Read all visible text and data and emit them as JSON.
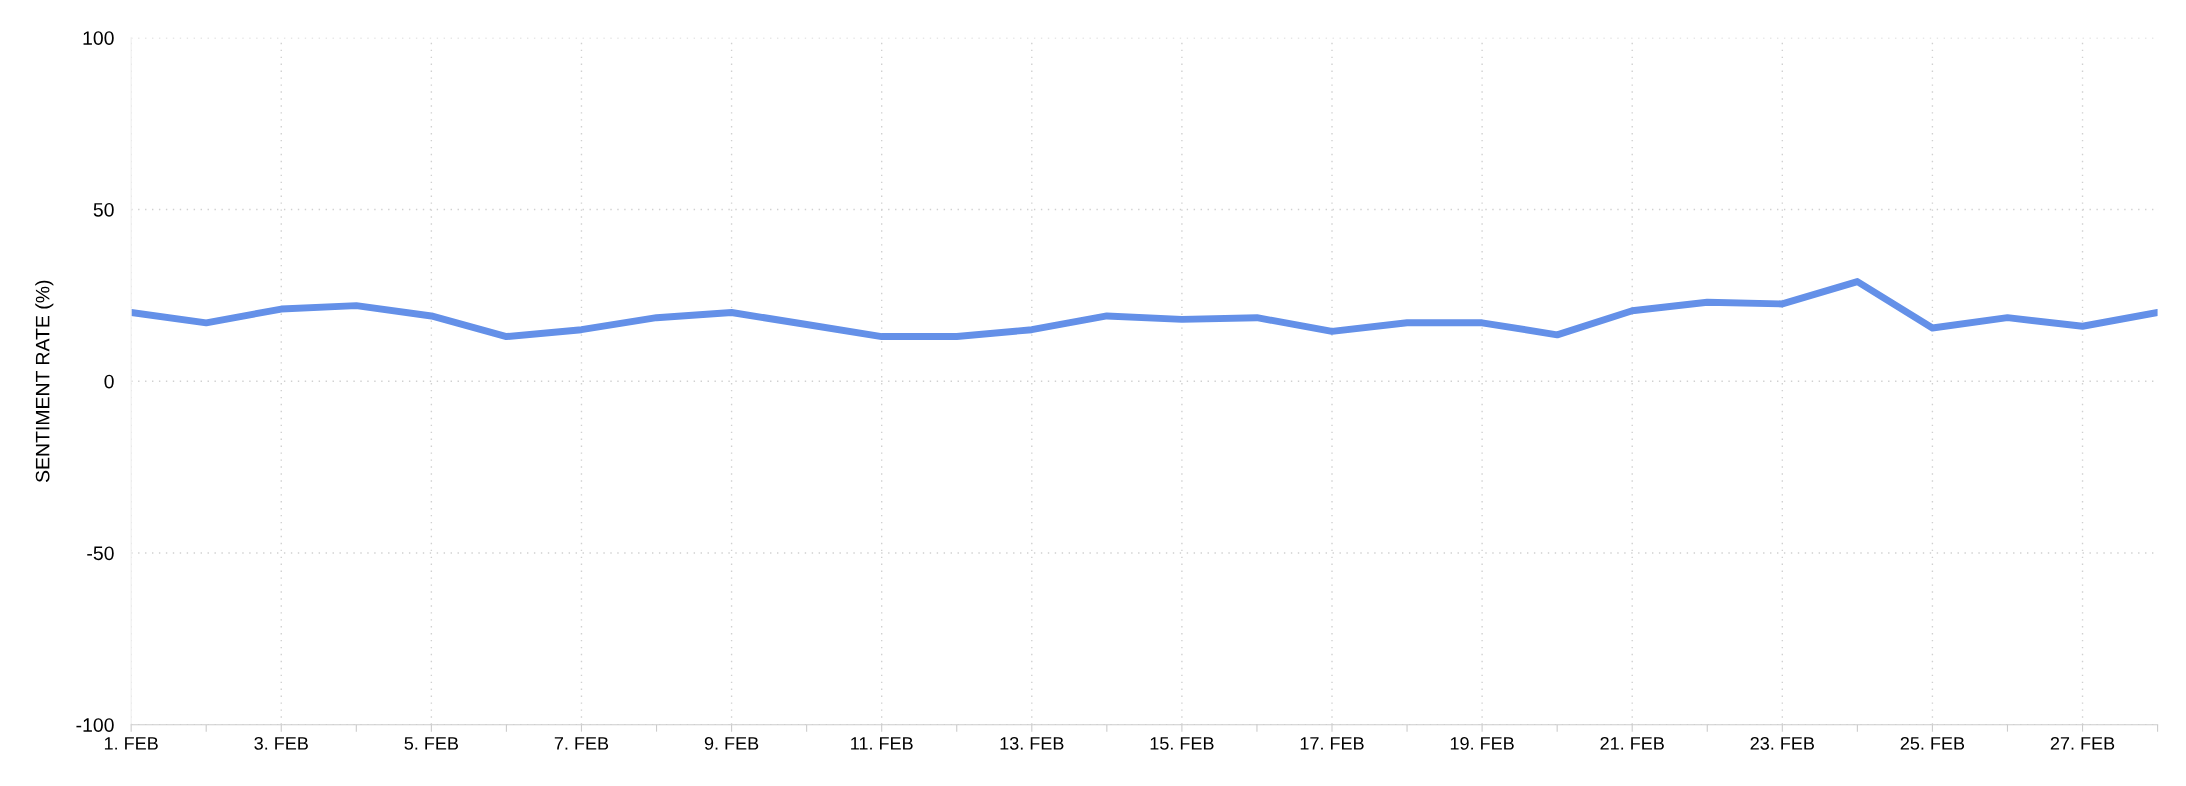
{
  "chart_data": {
    "type": "line",
    "ylabel": "SENTIMENT RATE (%)",
    "categories": [
      "1. FEB",
      null,
      "3. FEB",
      null,
      "5. FEB",
      null,
      "7. FEB",
      null,
      "9. FEB",
      null,
      "11. FEB",
      null,
      "13. FEB",
      null,
      "15. FEB",
      null,
      "17. FEB",
      null,
      "19. FEB",
      null,
      "21. FEB",
      null,
      "23. FEB",
      null,
      "25. FEB",
      null,
      "27. FEB",
      null
    ],
    "series": [
      {
        "color": "#6490e8",
        "values": [
          20,
          17,
          21,
          22,
          19,
          13,
          15,
          18.5,
          20,
          16.5,
          13,
          13,
          15,
          19,
          18,
          18.5,
          14.5,
          17,
          17,
          13.5,
          20.5,
          23,
          22.5,
          29,
          15.5,
          18.5,
          16,
          20
        ]
      }
    ],
    "ylim": [
      -100,
      100
    ],
    "yticks": [
      -100,
      -50,
      0,
      50,
      100
    ],
    "grid": true,
    "marker": "none",
    "line_style": "solid"
  }
}
